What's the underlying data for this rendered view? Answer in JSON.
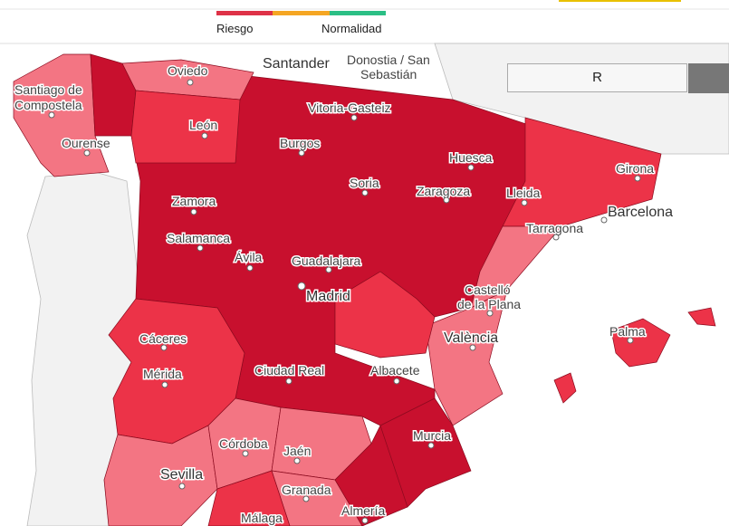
{
  "legend": {
    "labels": [
      "Riesgo",
      "Normalidad"
    ]
  },
  "search": {
    "value": "R"
  },
  "places": [
    "Oviedo",
    "Santander",
    "Donostia / San",
    "Sebastián",
    "Santiago de",
    "Compostela",
    "León",
    "Vitoria-Gasteiz",
    "Ourense",
    "Burgos",
    "Huesca",
    "Girona",
    "Soria",
    "Zaragoza",
    "Lleida",
    "Zamora",
    "Barcelona",
    "Tarragona",
    "Salamanca",
    "Ávila",
    "Guadalajara",
    "Castelló",
    "de la Plana",
    "Madrid",
    "València",
    "Cáceres",
    "Palma",
    "Mérida",
    "Ciudad Real",
    "Albacete",
    "Murcia",
    "Córdoba",
    "Jaén",
    "Sevilla",
    "Granada",
    "Almería",
    "Málaga"
  ]
}
